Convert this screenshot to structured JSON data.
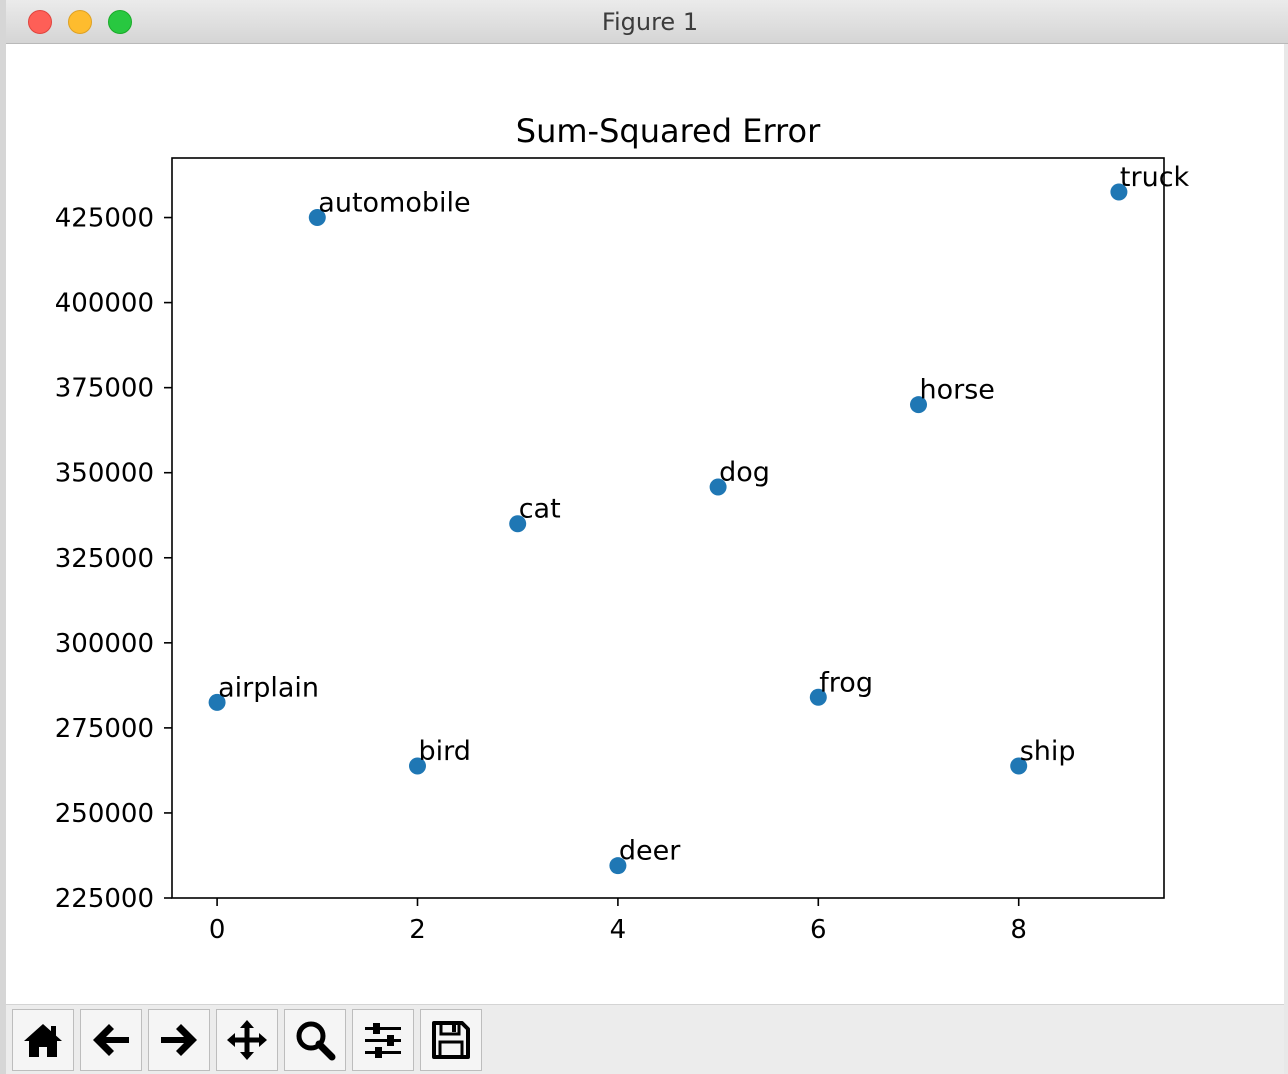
{
  "window": {
    "title": "Figure 1"
  },
  "toolbar": {
    "buttons": [
      {
        "name": "home",
        "icon": "home-icon"
      },
      {
        "name": "back",
        "icon": "arrow-left-icon"
      },
      {
        "name": "forward",
        "icon": "arrow-right-icon"
      },
      {
        "name": "pan",
        "icon": "move-icon"
      },
      {
        "name": "zoom",
        "icon": "magnifier-icon"
      },
      {
        "name": "configure",
        "icon": "sliders-icon"
      },
      {
        "name": "save",
        "icon": "floppy-icon"
      }
    ]
  },
  "colors": {
    "marker": "#1f77b4",
    "axes": "#000000",
    "titlebar": "#e0e0e0"
  },
  "chart_data": {
    "type": "scatter",
    "title": "Sum-Squared Error",
    "xlabel": "",
    "ylabel": "",
    "x": [
      0,
      1,
      2,
      3,
      4,
      5,
      6,
      7,
      8,
      9
    ],
    "y": [
      282500,
      425000,
      263800,
      335000,
      234500,
      345800,
      284000,
      370000,
      263800,
      432500
    ],
    "labels": [
      "airplain",
      "automobile",
      "bird",
      "cat",
      "deer",
      "dog",
      "frog",
      "horse",
      "ship",
      "truck"
    ],
    "xlim": [
      -0.45,
      9.45
    ],
    "ylim": [
      225000,
      442500
    ],
    "xticks": [
      0,
      2,
      4,
      6,
      8
    ],
    "xtick_labels": [
      "0",
      "2",
      "4",
      "6",
      "8"
    ],
    "yticks": [
      225000,
      250000,
      275000,
      300000,
      325000,
      350000,
      375000,
      400000,
      425000
    ],
    "ytick_labels": [
      "225000",
      "250000",
      "275000",
      "300000",
      "325000",
      "350000",
      "375000",
      "400000",
      "425000"
    ],
    "grid": false,
    "legend": "none"
  }
}
